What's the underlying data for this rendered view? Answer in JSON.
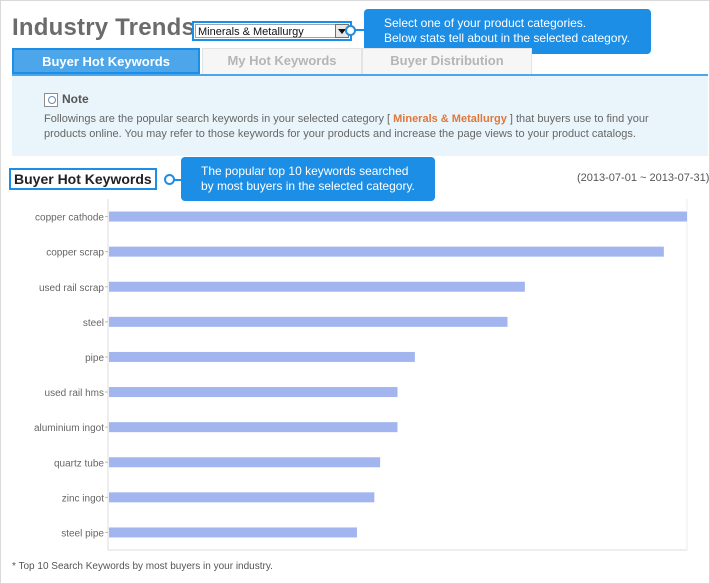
{
  "header": {
    "title": "Industry Trends"
  },
  "category_select": {
    "value": "Minerals & Metallurgy"
  },
  "callouts": {
    "category_help": [
      "Select one of your product categories.",
      "Below stats tell about in the selected category."
    ],
    "chart_help": [
      "The popular top 10 keywords searched",
      "by most buyers in the selected category."
    ]
  },
  "tabs": [
    {
      "label": "Buyer Hot Keywords",
      "active": true
    },
    {
      "label": "My Hot Keywords",
      "active": false
    },
    {
      "label": "Buyer Distribution",
      "active": false
    }
  ],
  "note": {
    "title": "Note",
    "text_before": "Followings are the popular search keywords in your selected category [ ",
    "category": "Minerals & Metallurgy",
    "text_after": " ] that buyers use to find your products online. You may refer to those keywords for your products and increase the page views to your product catalogs."
  },
  "section": {
    "title": "Buyer Hot Keywords",
    "date_range": "(2013-07-01 ~ 2013-07-31)"
  },
  "chart_data": {
    "type": "bar",
    "orientation": "horizontal",
    "categories": [
      "copper cathode",
      "copper scrap",
      "used rail scrap",
      "steel",
      "pipe",
      "used rail hms",
      "aluminium ingot",
      "quartz tube",
      "zinc ingot",
      "steel pipe"
    ],
    "values": [
      100,
      96,
      72,
      69,
      53,
      50,
      50,
      47,
      46,
      43
    ],
    "unit": "relative",
    "xlim": [
      0,
      100
    ],
    "grid": false,
    "bar_color": "#a3b5ee"
  },
  "footnote": "* Top 10 Search Keywords by most buyers in your industry."
}
